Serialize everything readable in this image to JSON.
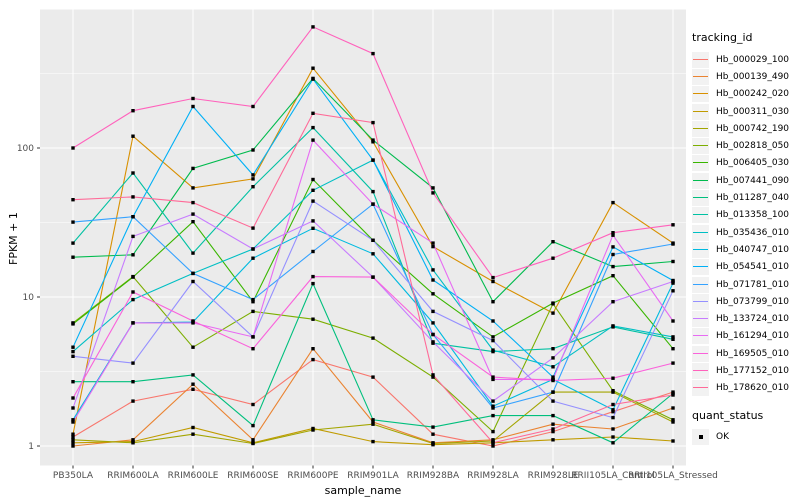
{
  "chart_data": {
    "type": "line",
    "title": "",
    "xlabel": "sample_name",
    "ylabel": "FPKM + 1",
    "y_scale": "log10",
    "y_ticks": [
      1,
      10,
      100
    ],
    "y_minor_ticks": [
      3.1623,
      31.623,
      316.23
    ],
    "ylim_log": [
      0.74,
      845
    ],
    "grid": "on",
    "legend_position": "right",
    "legend_title": "tracking_id",
    "quant_legend": {
      "title": "quant_status",
      "items": [
        "OK"
      ]
    },
    "point_shape": "square",
    "point_color": "#000000",
    "panel_bg": "#EBEBEB",
    "grid_color": "#FFFFFF",
    "axis_text_color": "#4D4D4D",
    "categories": [
      "PB350LA",
      "RRIM600LA",
      "RRIM600LE",
      "RRIM600SE",
      "RRIM600PE",
      "RRIM901LA",
      "RRIM928BA",
      "RRIM928LA",
      "RRIM928LE",
      "RRII105LA_Control",
      "RRII105LA_Stressed"
    ],
    "series": [
      {
        "name": "Hb_000029_100",
        "color": "#F8766D",
        "values": [
          1.15,
          2.0,
          2.4,
          1.9,
          3.8,
          2.9,
          1.2,
          1.0,
          1.25,
          1.7,
          2.3
        ]
      },
      {
        "name": "Hb_000139_490",
        "color": "#EA8331",
        "values": [
          1.0,
          1.1,
          2.6,
          1.1,
          4.5,
          1.45,
          1.05,
          1.1,
          1.4,
          1.3,
          1.8
        ]
      },
      {
        "name": "Hb_000242_020",
        "color": "#D89000",
        "values": [
          1.2,
          120,
          54,
          62,
          343,
          110,
          21.8,
          12.7,
          7.8,
          43,
          23
        ]
      },
      {
        "name": "Hb_000311_030",
        "color": "#C09B00",
        "values": [
          1.05,
          1.07,
          1.33,
          1.05,
          1.31,
          1.07,
          1.02,
          1.05,
          1.1,
          1.15,
          1.08
        ]
      },
      {
        "name": "Hb_000742_190",
        "color": "#A3A500",
        "values": [
          1.1,
          1.05,
          1.2,
          1.04,
          1.28,
          1.4,
          1.04,
          1.08,
          2.3,
          2.3,
          1.45
        ]
      },
      {
        "name": "Hb_002818_050",
        "color": "#7CAE00",
        "values": [
          6.7,
          13.7,
          4.6,
          8.0,
          7.1,
          5.3,
          2.9,
          1.25,
          9.0,
          2.35,
          1.5
        ]
      },
      {
        "name": "Hb_006405_030",
        "color": "#39B600",
        "values": [
          6.6,
          13.6,
          32,
          9.3,
          61.5,
          24,
          10.5,
          5.4,
          9.1,
          13.9,
          4.5
        ]
      },
      {
        "name": "Hb_007441_090",
        "color": "#00BB4E",
        "values": [
          18.5,
          19.2,
          73,
          97,
          293,
          113,
          54,
          9.3,
          23.5,
          16,
          17.3
        ]
      },
      {
        "name": "Hb_011287_040",
        "color": "#00BF7D",
        "values": [
          2.7,
          2.7,
          3.0,
          1.37,
          12.3,
          1.5,
          1.34,
          1.6,
          1.6,
          1.05,
          2.25
        ]
      },
      {
        "name": "Hb_013358_100",
        "color": "#00C1A3",
        "values": [
          23,
          68,
          19.7,
          55,
          137,
          51,
          4.9,
          4.3,
          4.5,
          6.3,
          5.2
        ]
      },
      {
        "name": "Hb_035436_010",
        "color": "#00BFC4",
        "values": [
          4.3,
          9.6,
          14.4,
          21,
          52,
          83,
          15.2,
          4.4,
          3.4,
          6.4,
          5.4
        ]
      },
      {
        "name": "Hb_040747_010",
        "color": "#00BAE0",
        "values": [
          1.5,
          6.7,
          6.8,
          18.2,
          28.9,
          19.5,
          6.7,
          1.85,
          2.8,
          1.75,
          12.4
        ]
      },
      {
        "name": "Hb_054541_010",
        "color": "#00B0F6",
        "values": [
          4.6,
          34.6,
          190,
          66,
          290,
          83,
          13.0,
          6.9,
          2.9,
          21.7,
          12.9
        ]
      },
      {
        "name": "Hb_071781_010",
        "color": "#35A2FF",
        "values": [
          31.8,
          34.6,
          14.4,
          9.6,
          20.2,
          42,
          5.6,
          1.8,
          2.3,
          19.3,
          22.7
        ]
      },
      {
        "name": "Hb_073799_010",
        "color": "#9590FF",
        "values": [
          4.0,
          3.6,
          12.7,
          5.4,
          44,
          24,
          8.0,
          5.1,
          2.0,
          1.55,
          11
        ]
      },
      {
        "name": "Hb_133724_010",
        "color": "#C77CFF",
        "values": [
          1.8,
          25.5,
          36,
          21,
          32.4,
          13.6,
          5.0,
          2.0,
          3.9,
          9.3,
          12.7
        ]
      },
      {
        "name": "Hb_161294_010",
        "color": "#E76BF3",
        "values": [
          1.45,
          6.7,
          6.7,
          5.4,
          113,
          42,
          23,
          2.8,
          2.8,
          26,
          6.9
        ]
      },
      {
        "name": "Hb_169505_010",
        "color": "#FA62DB",
        "values": [
          2.1,
          10.8,
          6.9,
          4.5,
          13.7,
          13.6,
          5.6,
          2.9,
          2.75,
          2.85,
          3.6
        ]
      },
      {
        "name": "Hb_177152_010",
        "color": "#FF62BC",
        "values": [
          100,
          178,
          215,
          190,
          650,
          430,
          50,
          13.5,
          18.2,
          27,
          30.5
        ]
      },
      {
        "name": "Hb_178620_010",
        "color": "#FF6A98",
        "values": [
          45,
          47,
          43,
          29,
          171,
          148,
          3.0,
          1.05,
          1.3,
          1.9,
          2.2
        ]
      }
    ]
  }
}
